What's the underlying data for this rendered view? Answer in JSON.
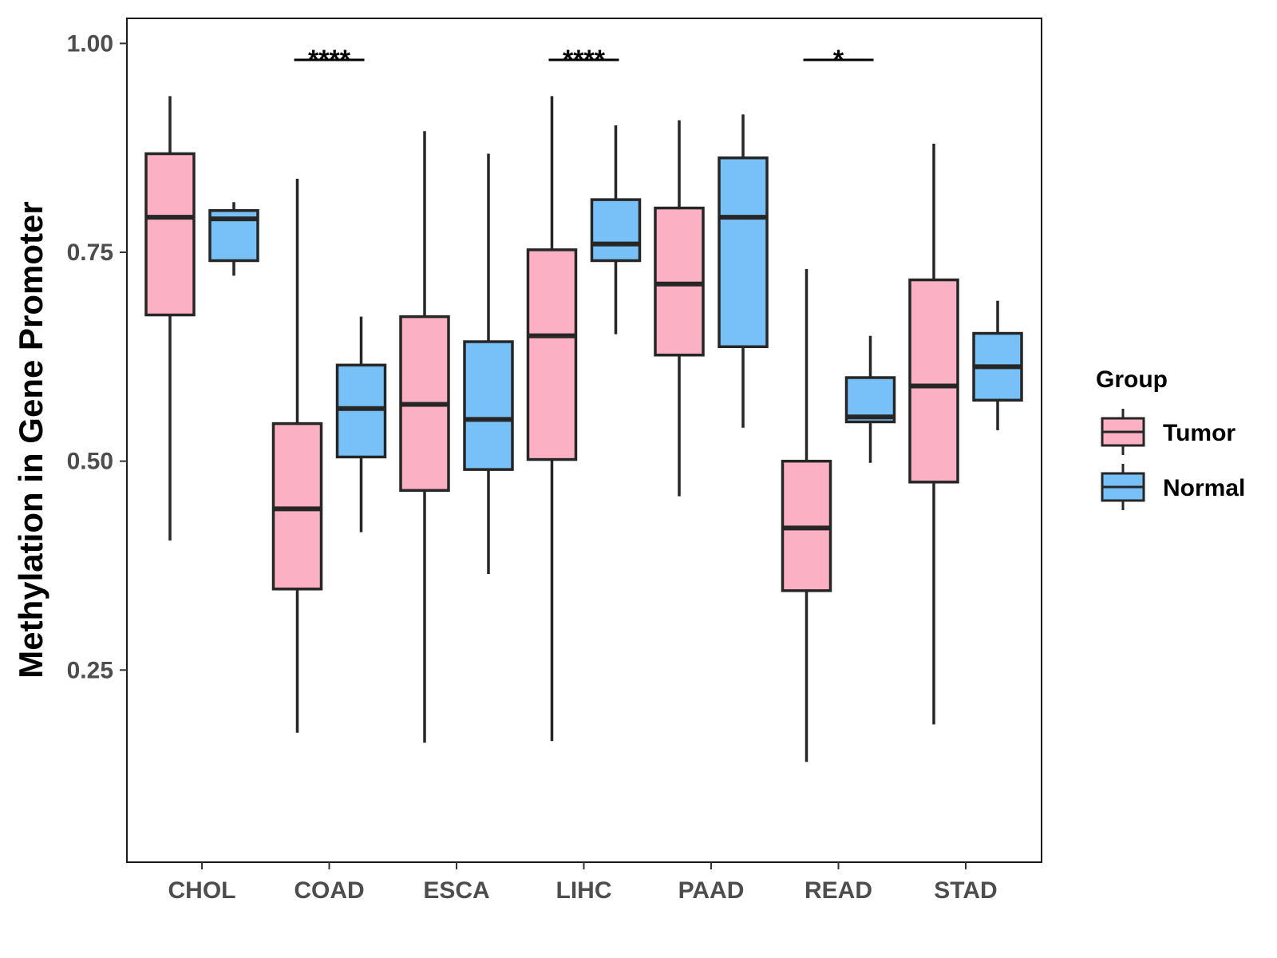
{
  "chart_data": {
    "type": "box",
    "title": "",
    "xlabel": "",
    "ylabel": "Methylation in Gene Promoter",
    "ylim": [
      0.02,
      1.03
    ],
    "yticks": [
      0.25,
      0.5,
      0.75,
      1.0
    ],
    "ytick_labels": [
      "0.25",
      "0.50",
      "0.75",
      "1.00"
    ],
    "categories": [
      "CHOL",
      "COAD",
      "ESCA",
      "LIHC",
      "PAAD",
      "READ",
      "STAD"
    ],
    "legend": {
      "title": "Group",
      "position": "right"
    },
    "series": [
      {
        "name": "Tumor",
        "color": "#FBB1C3",
        "boxes": [
          {
            "category": "CHOL",
            "whisker_low": 0.405,
            "q1": 0.675,
            "median": 0.792,
            "q3": 0.868,
            "whisker_high": 0.937
          },
          {
            "category": "COAD",
            "whisker_low": 0.175,
            "q1": 0.347,
            "median": 0.443,
            "q3": 0.545,
            "whisker_high": 0.838
          },
          {
            "category": "ESCA",
            "whisker_low": 0.163,
            "q1": 0.465,
            "median": 0.568,
            "q3": 0.673,
            "whisker_high": 0.895
          },
          {
            "category": "LIHC",
            "whisker_low": 0.165,
            "q1": 0.502,
            "median": 0.65,
            "q3": 0.753,
            "whisker_high": 0.937
          },
          {
            "category": "PAAD",
            "whisker_low": 0.458,
            "q1": 0.627,
            "median": 0.712,
            "q3": 0.803,
            "whisker_high": 0.908
          },
          {
            "category": "READ",
            "whisker_low": 0.14,
            "q1": 0.345,
            "median": 0.42,
            "q3": 0.5,
            "whisker_high": 0.73
          },
          {
            "category": "STAD",
            "whisker_low": 0.185,
            "q1": 0.475,
            "median": 0.59,
            "q3": 0.717,
            "whisker_high": 0.88
          }
        ]
      },
      {
        "name": "Normal",
        "color": "#78C1F8",
        "boxes": [
          {
            "category": "CHOL",
            "whisker_low": 0.722,
            "q1": 0.74,
            "median": 0.79,
            "q3": 0.8,
            "whisker_high": 0.81
          },
          {
            "category": "COAD",
            "whisker_low": 0.415,
            "q1": 0.505,
            "median": 0.563,
            "q3": 0.615,
            "whisker_high": 0.673
          },
          {
            "category": "ESCA",
            "whisker_low": 0.365,
            "q1": 0.49,
            "median": 0.55,
            "q3": 0.643,
            "whisker_high": 0.868
          },
          {
            "category": "LIHC",
            "whisker_low": 0.652,
            "q1": 0.74,
            "median": 0.76,
            "q3": 0.813,
            "whisker_high": 0.902
          },
          {
            "category": "PAAD",
            "whisker_low": 0.54,
            "q1": 0.637,
            "median": 0.792,
            "q3": 0.863,
            "whisker_high": 0.915
          },
          {
            "category": "READ",
            "whisker_low": 0.498,
            "q1": 0.547,
            "median": 0.553,
            "q3": 0.6,
            "whisker_high": 0.65
          },
          {
            "category": "STAD",
            "whisker_low": 0.537,
            "q1": 0.573,
            "median": 0.613,
            "q3": 0.653,
            "whisker_high": 0.692
          }
        ]
      }
    ],
    "significance": [
      {
        "category": "COAD",
        "label": "****"
      },
      {
        "category": "LIHC",
        "label": "****"
      },
      {
        "category": "READ",
        "label": "*"
      }
    ]
  }
}
